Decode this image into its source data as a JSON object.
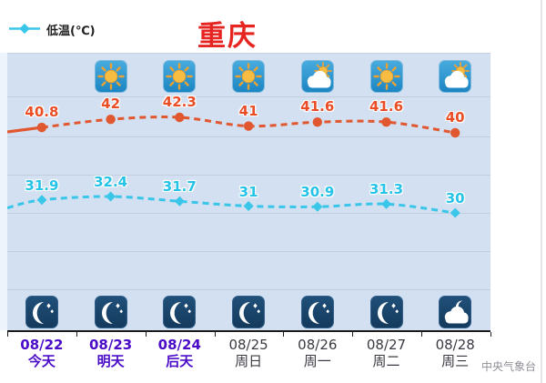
{
  "title": "重庆",
  "legend": {
    "low_label": "低温(℃)"
  },
  "watermark": "中央气象台",
  "colors": {
    "high_line": "#e1572f",
    "high_label": "#e94e26",
    "low_line": "#3ac6e8",
    "low_label": "#25c3e8",
    "title_red": "#e62420",
    "highlight_purple": "#4b0cc8",
    "axis_label_gray": "#3a3a42",
    "chart_bg": "#d2e0f1"
  },
  "chart_data": {
    "type": "line",
    "title": "重庆",
    "categories": [
      "08/22",
      "08/23",
      "08/24",
      "08/25",
      "08/26",
      "08/27",
      "08/28"
    ],
    "day_names": [
      "今天",
      "明天",
      "后天",
      "周日",
      "周一",
      "周二",
      "周三"
    ],
    "highlighted_days": 3,
    "series": [
      {
        "name": "high",
        "legend_label": "",
        "values": [
          40.8,
          42,
          42.3,
          41,
          41.6,
          41.6,
          40
        ],
        "color": "#e1572f",
        "marker": "circle",
        "style": "solid-then-dashed"
      },
      {
        "name": "low",
        "legend_label": "低温(℃)",
        "values": [
          31.9,
          32.4,
          31.7,
          31,
          30.9,
          31.3,
          30
        ],
        "color": "#3ac6e8",
        "marker": "diamond",
        "style": "dashed"
      }
    ],
    "day_icons": [
      null,
      "sunny",
      "sunny",
      "sunny",
      "cloudy-sun",
      "sunny",
      "cloudy-sun"
    ],
    "night_icons": [
      "moon",
      "moon",
      "moon",
      "moon",
      "moon",
      "moon",
      "cloudy-moon"
    ],
    "grid": true,
    "legend_position": "top-left"
  }
}
